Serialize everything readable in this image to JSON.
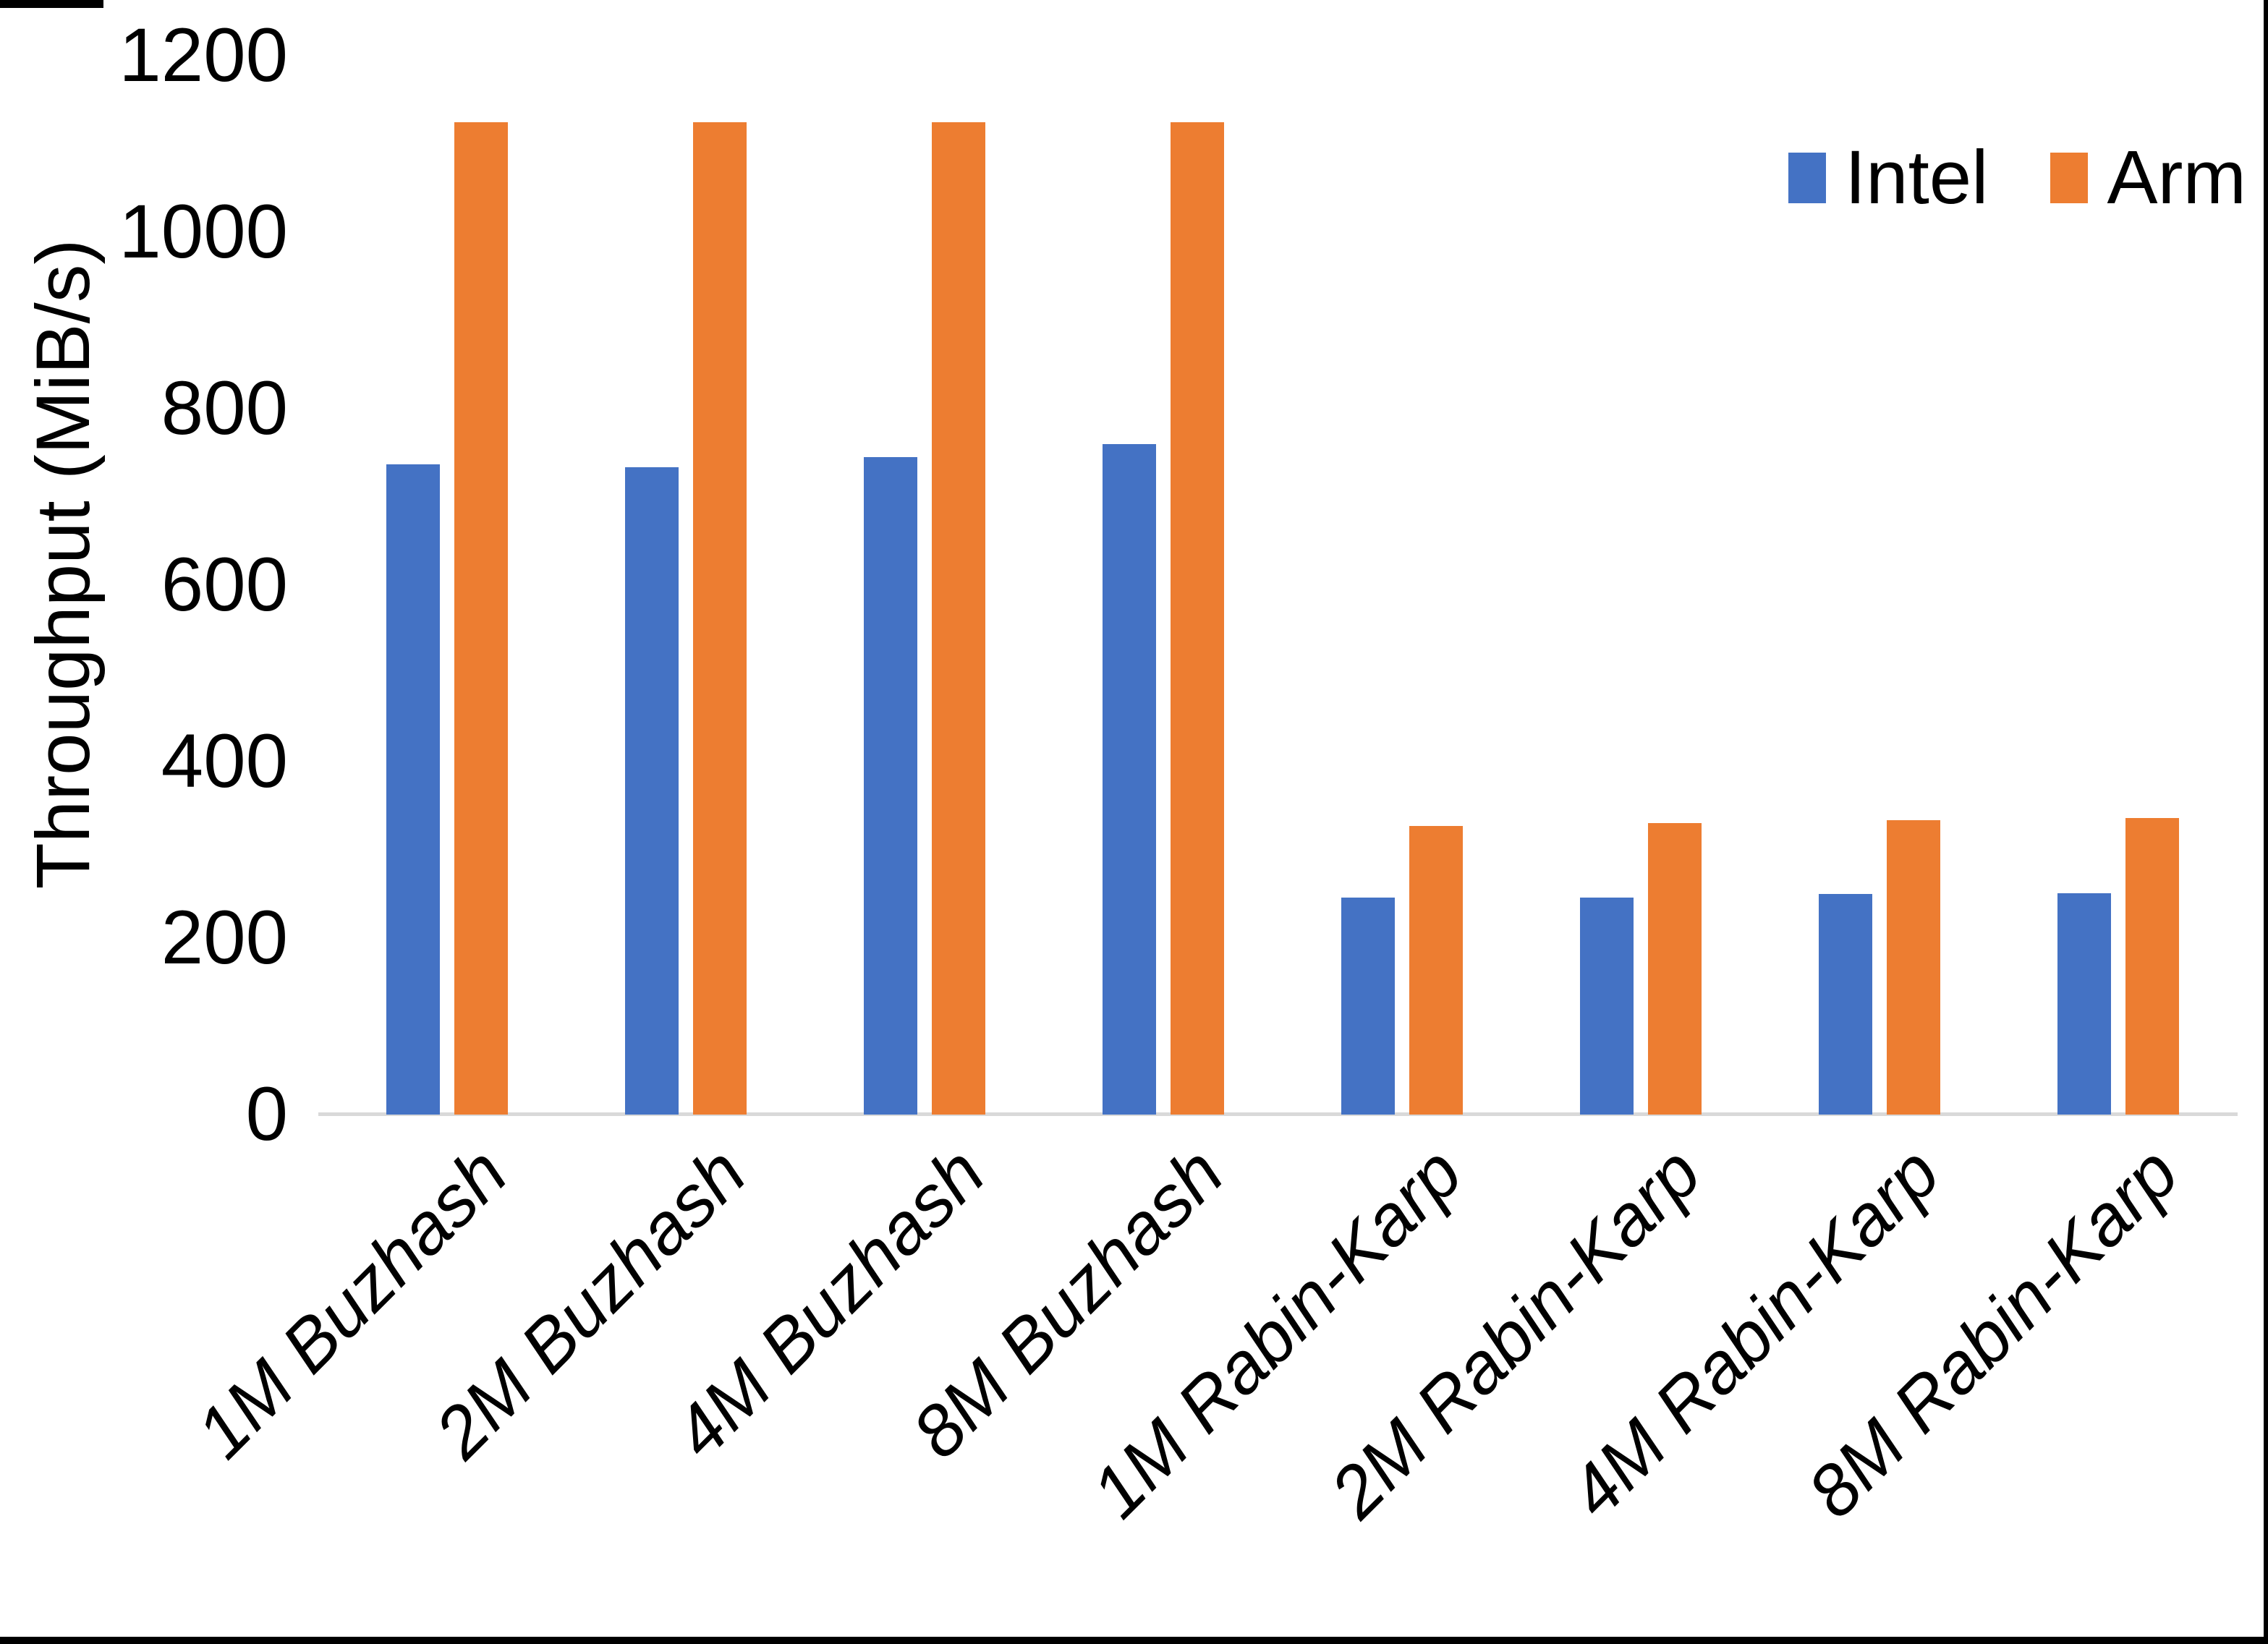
{
  "figure": {
    "background": "#FFFFFF",
    "text_color": "#000000"
  },
  "chart_data": {
    "type": "bar",
    "title": "",
    "xlabel": "",
    "ylabel": "Throughput (MiB/s)",
    "ylim": [
      0,
      1200
    ],
    "yticks": [
      0,
      200,
      400,
      600,
      800,
      1000,
      1200
    ],
    "grid": false,
    "legend_position": "top-right",
    "axis_line_color": "#D9D9D9",
    "categories": [
      "1M Buzhash",
      "2M Buzhash",
      "4M Buzhash",
      "8M Buzhash",
      "1M Rabin-Karp",
      "2M Rabin-Karp",
      "4M Rabin-Karp",
      "8M Rabin-Karp"
    ],
    "series": [
      {
        "name": "Intel",
        "color": "#4472C4",
        "values": [
          737,
          734,
          745,
          760,
          246,
          246,
          250,
          251
        ]
      },
      {
        "name": "Arm",
        "color": "#ED7D31",
        "values": [
          1125,
          1125,
          1125,
          1125,
          327,
          330,
          334,
          336
        ]
      }
    ]
  }
}
